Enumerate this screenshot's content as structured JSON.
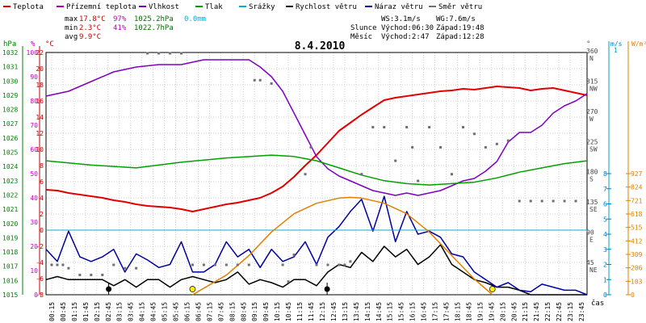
{
  "chart_data": {
    "type": "line",
    "title": "8.4.2010",
    "legend": [
      {
        "name": "Teplota",
        "color": "#e00000"
      },
      {
        "name": "Přízemní teplota",
        "color": "#b000b0"
      },
      {
        "name": "Vlhkost",
        "color": "#8000c0"
      },
      {
        "name": "Tlak",
        "color": "#00a000"
      },
      {
        "name": "Srážky",
        "color": "#00b0d0"
      },
      {
        "name": "Rychlost větru",
        "color": "#000000"
      },
      {
        "name": "Náraz větru",
        "color": "#0000a0"
      },
      {
        "name": "Směr větru",
        "color": "#707070"
      }
    ],
    "stats": {
      "max_label": "max",
      "min_label": "min",
      "avg_label": "avg",
      "max_temp": "17.8°C",
      "max_hum": "97%",
      "max_press": "1025.2hPa",
      "max_rain": "0.0mm",
      "min_temp": "2.3°C",
      "min_hum": "41%",
      "min_press": "1022.7hPa",
      "avg_temp": "9.9°C",
      "ws": "WS:3.1m/s",
      "wg": "WG:7.6m/s",
      "sun_label": "Slunce",
      "sunrise": "Východ:06:30",
      "sunset": "Západ:19:48",
      "moon_label": "Měsíc",
      "moonrise": "Východ:2:47",
      "moonset": "Západ:12:28"
    },
    "axis_units": {
      "hpa": "hPa",
      "pct": "%",
      "degc": "°C",
      "deg": "°",
      "ms": "m/s",
      "wm2": "W/m²",
      "time": "čas"
    },
    "ticks": {
      "hpa": [
        "1032",
        "1031",
        "1030",
        "1029",
        "1028",
        "1027",
        "1026",
        "1025",
        "1024",
        "1023",
        "1022",
        "1021",
        "1020",
        "1019",
        "1018",
        "1017",
        "1016",
        "1015"
      ],
      "pct": [
        "100",
        "90",
        "80",
        "70",
        "60",
        "50",
        "40",
        "30",
        "20",
        "10",
        "0"
      ],
      "degc": [
        "22",
        "20",
        "18",
        "16",
        "14",
        "12",
        "10",
        "8",
        "6",
        "4",
        "2",
        "0",
        "-2",
        "-4",
        "-6",
        "-8"
      ],
      "dir": [
        {
          "v": 360,
          "l": "360",
          "d": "N"
        },
        {
          "v": 315,
          "l": "315",
          "d": "NW"
        },
        {
          "v": 270,
          "l": "270",
          "d": "W"
        },
        {
          "v": 225,
          "l": "225",
          "d": "SW"
        },
        {
          "v": 180,
          "l": "180",
          "d": "S"
        },
        {
          "v": 135,
          "l": "135",
          "d": "SE"
        },
        {
          "v": 90,
          "l": "90",
          "d": "E"
        },
        {
          "v": 45,
          "l": "45",
          "d": "NE"
        }
      ],
      "wind": [
        "8",
        "7",
        "6",
        "5",
        "4",
        "3",
        "2",
        "1",
        "0"
      ],
      "rain_top": "1",
      "solar": [
        "927",
        "824",
        "721",
        "618",
        "515",
        "412",
        "309",
        "206",
        "103",
        "0"
      ],
      "time": [
        "00:15",
        "00:45",
        "01:15",
        "01:45",
        "02:15",
        "02:45",
        "03:15",
        "03:45",
        "04:15",
        "04:45",
        "05:15",
        "05:45",
        "06:15",
        "06:45",
        "07:15",
        "07:45",
        "08:15",
        "08:45",
        "09:15",
        "09:45",
        "10:15",
        "10:45",
        "11:15",
        "11:45",
        "12:15",
        "12:45",
        "13:15",
        "13:45",
        "14:15",
        "14:45",
        "15:15",
        "15:45",
        "16:15",
        "16:45",
        "17:15",
        "17:45",
        "18:15",
        "18:45",
        "19:15",
        "19:45",
        "20:15",
        "20:45",
        "21:15",
        "21:45",
        "22:15",
        "22:45",
        "23:15",
        "23:45"
      ]
    },
    "x_range_hours": [
      0,
      24
    ],
    "series": [
      {
        "name": "Teplota",
        "unit": "°C",
        "color": "#e00000",
        "x": [
          0,
          0.5,
          1,
          1.5,
          2,
          2.5,
          3,
          3.5,
          4,
          4.5,
          5,
          5.5,
          6,
          6.5,
          7,
          7.5,
          8,
          8.5,
          9,
          9.5,
          10,
          10.5,
          11,
          11.5,
          12,
          12.5,
          13,
          13.5,
          14,
          14.5,
          15,
          15.5,
          16,
          16.5,
          17,
          17.5,
          18,
          18.5,
          19,
          19.5,
          20,
          20.5,
          21,
          21.5,
          22,
          22.5,
          23,
          23.5,
          24
        ],
        "y": [
          5.0,
          4.9,
          4.6,
          4.4,
          4.2,
          4.0,
          3.7,
          3.5,
          3.2,
          3.0,
          2.9,
          2.8,
          2.6,
          2.3,
          2.6,
          2.9,
          3.2,
          3.4,
          3.7,
          4.0,
          4.6,
          5.4,
          6.6,
          8.0,
          9.3,
          10.8,
          12.3,
          13.3,
          14.3,
          15.2,
          16.1,
          16.4,
          16.6,
          16.8,
          17.0,
          17.2,
          17.3,
          17.5,
          17.4,
          17.6,
          17.8,
          17.7,
          17.6,
          17.3,
          17.5,
          17.6,
          17.3,
          17.0,
          16.7
        ]
      },
      {
        "name": "Vlhkost",
        "unit": "%",
        "color": "#8000c0",
        "x": [
          0,
          1,
          2,
          3,
          4,
          5,
          6,
          7,
          8,
          9,
          9.5,
          10,
          10.5,
          11,
          11.5,
          12,
          12.5,
          13,
          13.5,
          14,
          14.5,
          15,
          15.5,
          16,
          16.5,
          17,
          17.5,
          18,
          18.5,
          19,
          19.5,
          20,
          20.5,
          21,
          21.5,
          22,
          22.5,
          23,
          23.5,
          24
        ],
        "y": [
          82,
          84,
          88,
          92,
          94,
          95,
          95,
          97,
          97,
          97,
          94,
          90,
          84,
          75,
          66,
          57,
          52,
          49,
          47,
          45,
          43,
          42,
          41,
          42,
          41,
          42,
          43,
          45,
          47,
          48,
          51,
          55,
          63,
          67,
          67,
          70,
          75,
          78,
          80,
          83
        ]
      },
      {
        "name": "Tlak",
        "unit": "hPa",
        "color": "#00a000",
        "x": [
          0,
          2,
          4,
          6,
          8,
          10,
          11,
          12,
          13,
          14,
          15,
          16,
          17,
          18,
          19,
          20,
          21,
          22,
          23,
          24
        ],
        "y": [
          1024.4,
          1024.1,
          1023.9,
          1024.3,
          1024.6,
          1024.8,
          1024.7,
          1024.4,
          1023.9,
          1023.4,
          1023.0,
          1022.8,
          1022.7,
          1022.8,
          1022.9,
          1023.2,
          1023.6,
          1023.9,
          1024.2,
          1024.4
        ]
      },
      {
        "name": "Rychlost větru",
        "unit": "m/s",
        "color": "#000000",
        "x": [
          0,
          0.5,
          1,
          1.5,
          2,
          2.5,
          3,
          3.5,
          4,
          4.5,
          5,
          5.5,
          6,
          6.5,
          7,
          7.5,
          8,
          8.5,
          9,
          9.5,
          10,
          10.5,
          11,
          11.5,
          12,
          12.5,
          13,
          13.5,
          14,
          14.5,
          15,
          15.5,
          16,
          16.5,
          17,
          17.5,
          18,
          18.5,
          19,
          19.5,
          20,
          20.5,
          21,
          21.5,
          22,
          22.5,
          23,
          23.5,
          24
        ],
        "y": [
          1,
          1.2,
          1,
          1,
          1,
          1,
          0.6,
          1,
          0.5,
          1,
          1,
          0.5,
          1,
          1.2,
          1,
          0.8,
          1,
          1.5,
          0.7,
          1,
          0.8,
          0.5,
          1,
          1,
          0.6,
          1.5,
          2,
          1.8,
          2.8,
          2.2,
          3.2,
          2.5,
          3.0,
          2.0,
          2.5,
          3.3,
          2.0,
          1.5,
          1,
          0.8,
          0.5,
          0.5,
          0.3,
          0,
          0,
          0,
          0,
          0,
          0
        ]
      },
      {
        "name": "Náraz větru",
        "unit": "m/s",
        "color": "#0000a0",
        "x": [
          0,
          0.5,
          1,
          1.5,
          2,
          2.5,
          3,
          3.5,
          4,
          4.5,
          5,
          5.5,
          6,
          6.5,
          7,
          7.5,
          8,
          8.5,
          9,
          9.5,
          10,
          10.5,
          11,
          11.5,
          12,
          12.5,
          13,
          13.5,
          14,
          14.5,
          15,
          15.5,
          16,
          16.5,
          17,
          17.5,
          18,
          18.5,
          19,
          19.5,
          20,
          20.5,
          21,
          21.5,
          22,
          22.5,
          23,
          23.5,
          24
        ],
        "y": [
          3,
          2.2,
          4.2,
          2.5,
          2.2,
          2.5,
          3,
          1.5,
          2.7,
          2.3,
          1.8,
          2.0,
          3.5,
          1.5,
          1.5,
          2.0,
          3.5,
          2.5,
          3,
          1.8,
          3,
          2.2,
          2.5,
          3.5,
          2.0,
          3.8,
          4.5,
          5.5,
          6.3,
          4.2,
          6.5,
          3.5,
          5.5,
          4.0,
          4.2,
          3.8,
          2.7,
          2.5,
          1.5,
          1.0,
          0.5,
          0.8,
          0.3,
          0.2,
          0.7,
          0.5,
          0.3,
          0.3,
          0
        ]
      },
      {
        "name": "Přízemní teplota",
        "unit": "°C",
        "color": "#b000b0",
        "x": [
          0,
          24
        ],
        "y": [
          0,
          0
        ]
      },
      {
        "name": "Srážky",
        "unit": "mm",
        "color": "#00b0d0",
        "x": [
          0,
          24
        ],
        "y": [
          0,
          0
        ]
      },
      {
        "name": "Sluneční záření",
        "unit": "W/m²",
        "color": "#e08000",
        "x": [
          6.5,
          8,
          9,
          10,
          11,
          12,
          13,
          13.5,
          14,
          15,
          16,
          17,
          18,
          19,
          19.8
        ],
        "y": [
          0,
          150,
          300,
          480,
          620,
          700,
          740,
          745,
          740,
          700,
          620,
          480,
          300,
          120,
          0
        ]
      },
      {
        "name": "Směr větru",
        "unit": "°",
        "color": "#707070",
        "x": [
          0.25,
          0.5,
          0.75,
          1,
          1.5,
          2,
          2.5,
          3,
          3.5,
          4,
          4.5,
          5,
          5.5,
          6,
          6.5,
          7,
          7.5,
          8,
          8.5,
          9,
          9.25,
          9.5,
          10,
          10.5,
          10.75,
          11,
          11.5,
          11.75,
          12,
          12.5,
          13,
          13.25,
          13.5,
          14,
          14.5,
          15,
          15.5,
          16,
          16.25,
          16.5,
          17,
          17.5,
          18,
          18.5,
          19,
          19.5,
          20,
          20.5,
          21,
          21.5,
          22,
          22.5,
          23,
          23.5
        ],
        "y": [
          45,
          45,
          45,
          40,
          30,
          30,
          30,
          45,
          40,
          40,
          360,
          360,
          360,
          360,
          45,
          45,
          45,
          45,
          45,
          45,
          320,
          320,
          315,
          45,
          20,
          60,
          180,
          220,
          45,
          45,
          45,
          45,
          50,
          180,
          250,
          250,
          200,
          250,
          220,
          170,
          250,
          220,
          180,
          250,
          240,
          220,
          225,
          230,
          140,
          140,
          140,
          140,
          140,
          140
        ]
      }
    ],
    "markers": {
      "moon": [
        2.78,
        12.47
      ],
      "sun": [
        6.5,
        19.8
      ]
    }
  }
}
